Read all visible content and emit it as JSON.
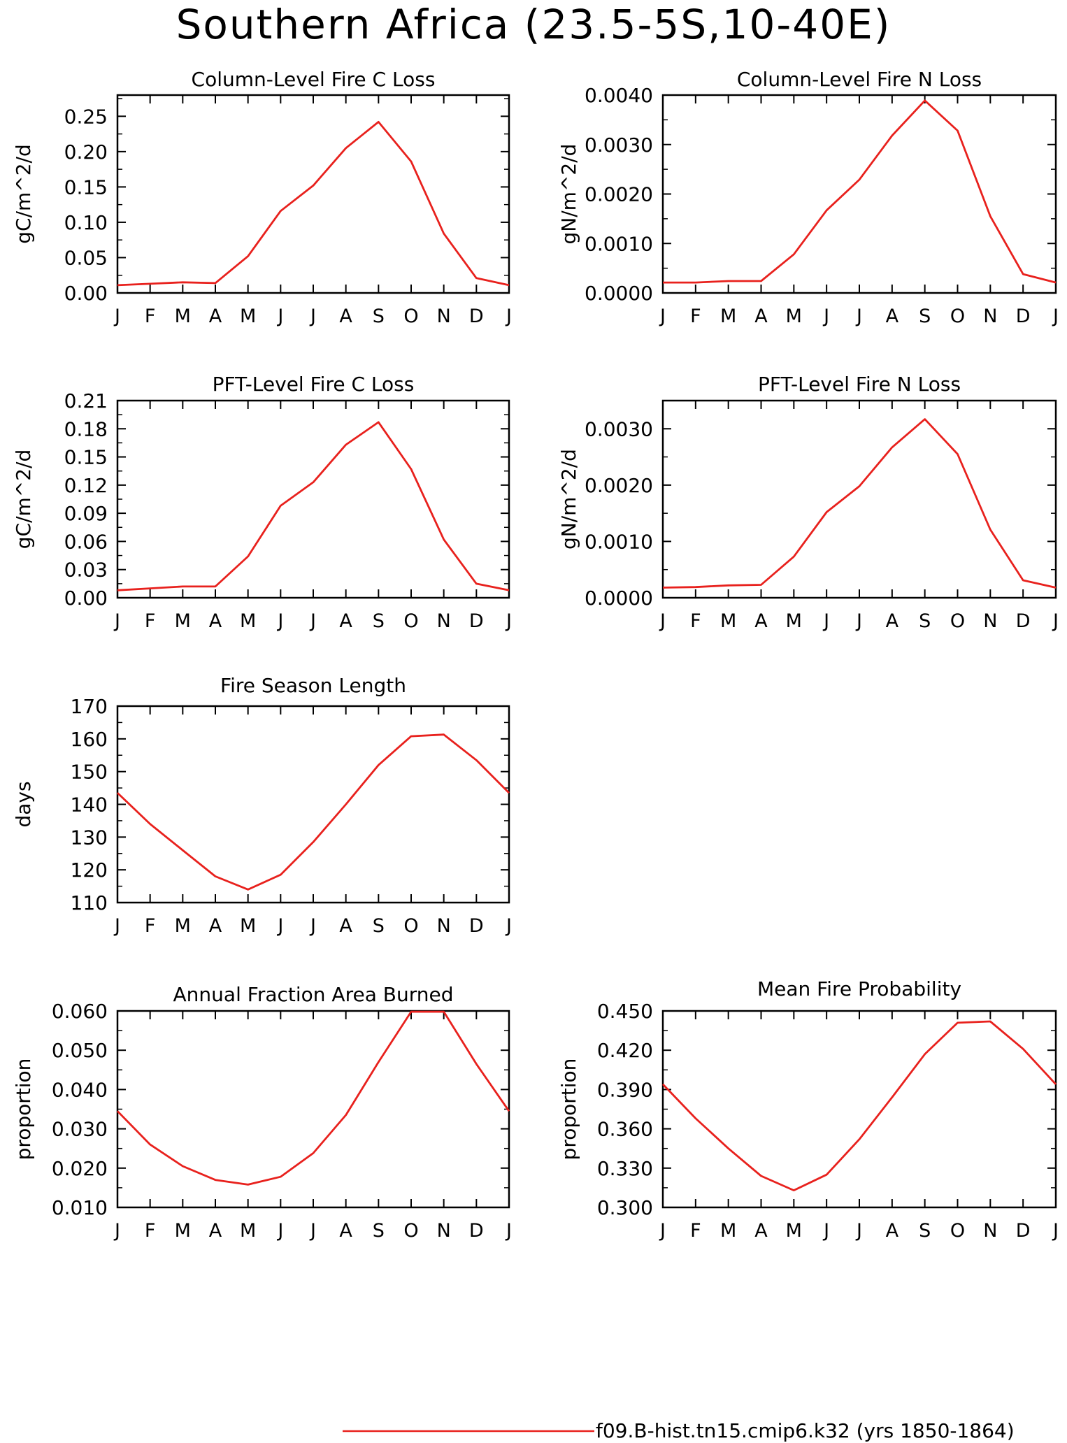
{
  "page": {
    "title": "Southern Africa (23.5-5S,10-40E)",
    "legend_label": "f09.B-hist.tn15.cmip6.k32 (yrs 1850-1864)",
    "legend_color": "#e8211d"
  },
  "chart_data": [
    {
      "type": "line",
      "title": "Column-Level Fire C Loss",
      "ylabel": "gC/m^2/d",
      "categories": [
        "J",
        "F",
        "M",
        "A",
        "M",
        "J",
        "J",
        "A",
        "S",
        "O",
        "N",
        "D",
        "J"
      ],
      "yticks": [
        "0.00",
        "0.05",
        "0.10",
        "0.15",
        "0.20",
        "0.25"
      ],
      "ylim": [
        0,
        0.28
      ],
      "series": [
        {
          "values": [
            0.011,
            0.013,
            0.015,
            0.014,
            0.052,
            0.116,
            0.152,
            0.205,
            0.242,
            0.186,
            0.084,
            0.021,
            0.011
          ]
        }
      ]
    },
    {
      "type": "line",
      "title": "Column-Level Fire N Loss",
      "ylabel": "gN/m^2/d",
      "categories": [
        "J",
        "F",
        "M",
        "A",
        "M",
        "J",
        "J",
        "A",
        "S",
        "O",
        "N",
        "D",
        "J"
      ],
      "yticks": [
        "0.0000",
        "0.0010",
        "0.0020",
        "0.0030",
        "0.0040"
      ],
      "ylim": [
        0,
        0.004
      ],
      "series": [
        {
          "values": [
            0.00021,
            0.00021,
            0.00024,
            0.00024,
            0.00078,
            0.00167,
            0.00229,
            0.00318,
            0.00389,
            0.00328,
            0.00155,
            0.00038,
            0.00021
          ]
        }
      ]
    },
    {
      "type": "line",
      "title": "PFT-Level Fire C Loss",
      "ylabel": "gC/m^2/d",
      "categories": [
        "J",
        "F",
        "M",
        "A",
        "M",
        "J",
        "J",
        "A",
        "S",
        "O",
        "N",
        "D",
        "J"
      ],
      "yticks": [
        "0.00",
        "0.03",
        "0.06",
        "0.09",
        "0.12",
        "0.15",
        "0.18",
        "0.21"
      ],
      "ylim": [
        0,
        0.21
      ],
      "series": [
        {
          "values": [
            0.008,
            0.01,
            0.012,
            0.012,
            0.044,
            0.098,
            0.123,
            0.163,
            0.187,
            0.137,
            0.062,
            0.015,
            0.008
          ]
        }
      ]
    },
    {
      "type": "line",
      "title": "PFT-Level Fire N Loss",
      "ylabel": "gN/m^2/d",
      "categories": [
        "J",
        "F",
        "M",
        "A",
        "M",
        "J",
        "J",
        "A",
        "S",
        "O",
        "N",
        "D",
        "J"
      ],
      "yticks": [
        "0.0000",
        "0.0010",
        "0.0020",
        "0.0030"
      ],
      "ylim": [
        0,
        0.0035
      ],
      "series": [
        {
          "values": [
            0.00018,
            0.00019,
            0.00022,
            0.00023,
            0.00073,
            0.00152,
            0.00198,
            0.00267,
            0.00317,
            0.00255,
            0.00121,
            0.00031,
            0.00018
          ]
        }
      ]
    },
    {
      "type": "line",
      "title": "Fire Season Length",
      "ylabel": "days",
      "categories": [
        "J",
        "F",
        "M",
        "A",
        "M",
        "J",
        "J",
        "A",
        "S",
        "O",
        "N",
        "D",
        "J"
      ],
      "yticks": [
        "110",
        "120",
        "130",
        "140",
        "150",
        "160",
        "170"
      ],
      "ylim": [
        110,
        170
      ],
      "series": [
        {
          "values": [
            143.5,
            134,
            126,
            118,
            114,
            118.5,
            128.5,
            140,
            152,
            160.8,
            161.3,
            153.5,
            143.5
          ]
        }
      ]
    },
    {
      "type": "line",
      "title": "Annual Fraction Area Burned",
      "ylabel": "proportion",
      "categories": [
        "J",
        "F",
        "M",
        "A",
        "M",
        "J",
        "J",
        "A",
        "S",
        "O",
        "N",
        "D",
        "J"
      ],
      "yticks": [
        "0.010",
        "0.020",
        "0.030",
        "0.040",
        "0.050",
        "0.060"
      ],
      "ylim": [
        0.01,
        0.06
      ],
      "series": [
        {
          "values": [
            0.0345,
            0.026,
            0.0205,
            0.017,
            0.0158,
            0.0178,
            0.0238,
            0.0335,
            0.047,
            0.0598,
            0.0598,
            0.0465,
            0.0345
          ]
        }
      ]
    },
    {
      "type": "line",
      "title": "Mean Fire Probability",
      "ylabel": "proportion",
      "categories": [
        "J",
        "F",
        "M",
        "A",
        "M",
        "J",
        "J",
        "A",
        "S",
        "O",
        "N",
        "D",
        "J"
      ],
      "yticks": [
        "0.300",
        "0.330",
        "0.360",
        "0.390",
        "0.420",
        "0.450"
      ],
      "ylim": [
        0.3,
        0.45
      ],
      "series": [
        {
          "values": [
            0.394,
            0.368,
            0.345,
            0.324,
            0.313,
            0.325,
            0.352,
            0.384,
            0.417,
            0.441,
            0.442,
            0.421,
            0.394
          ]
        }
      ]
    }
  ]
}
